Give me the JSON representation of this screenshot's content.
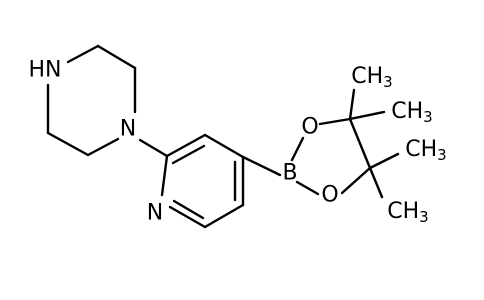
{
  "atoms": {
    "piperazine_nh": "HN",
    "piperazine_n": "N",
    "pyridine_n": "N",
    "boron": "B",
    "oxygen_top": "O",
    "oxygen_bottom": "O",
    "methyls": [
      {
        "text": "CH",
        "sub": "3"
      },
      {
        "text": "CH",
        "sub": "3"
      },
      {
        "text": "CH",
        "sub": "3"
      },
      {
        "text": "CH",
        "sub": "3"
      }
    ]
  }
}
